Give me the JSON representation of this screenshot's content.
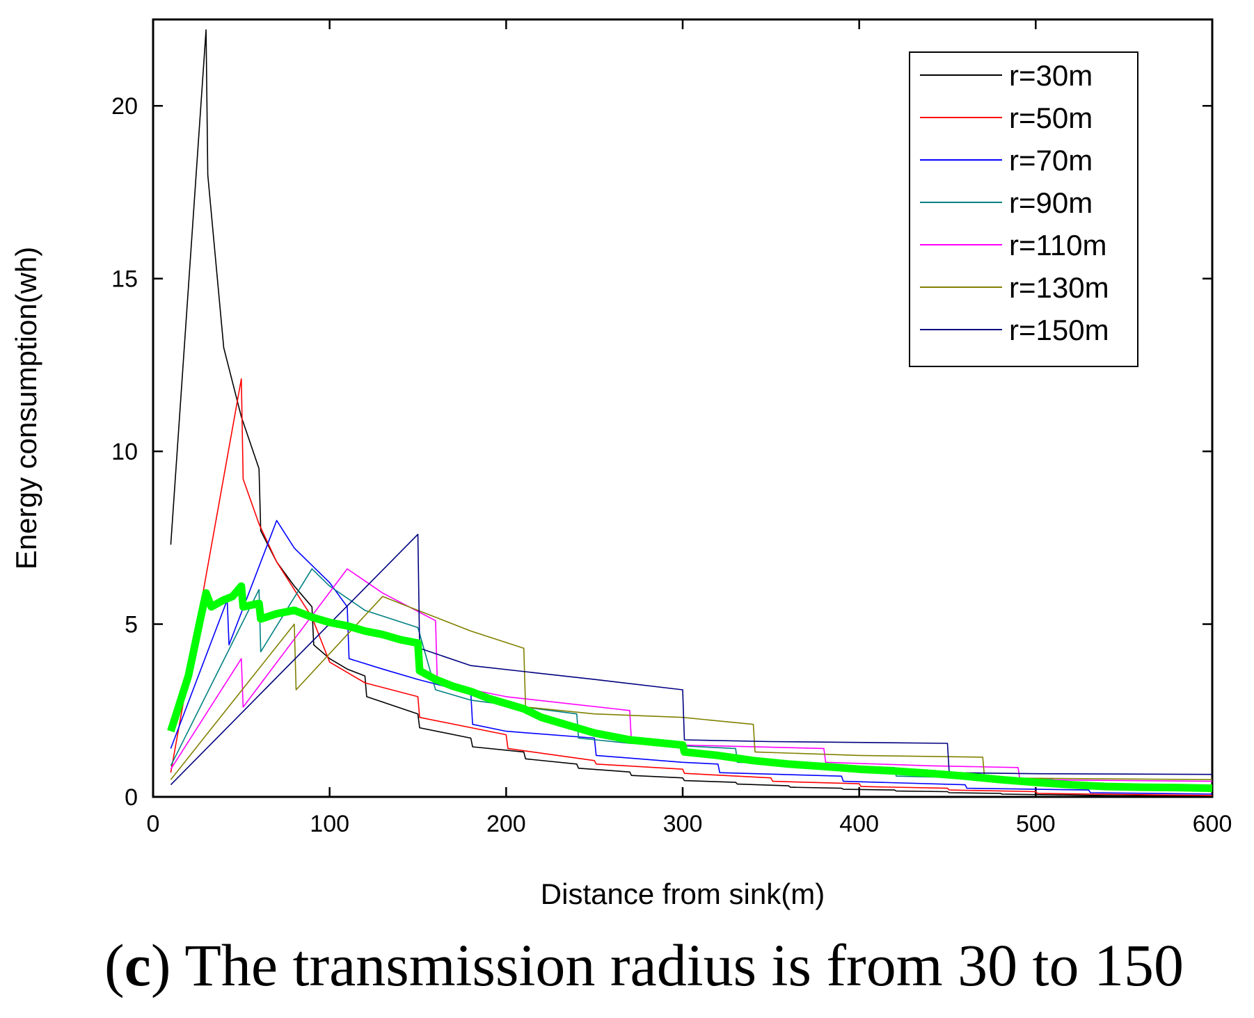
{
  "caption": {
    "open_paren": "(",
    "tag": "c",
    "rest": ") The transmission radius is from 30 to 150"
  },
  "chart_data": {
    "type": "line",
    "title": "",
    "xlabel": "Distance from sink(m)",
    "ylabel": "Energy consumption(wh)",
    "xlim": [
      0,
      600
    ],
    "ylim": [
      0,
      22.5
    ],
    "xticks": [
      0,
      100,
      200,
      300,
      400,
      500,
      600
    ],
    "yticks": [
      0,
      5,
      10,
      15,
      20
    ],
    "grid": false,
    "legend_position": "top-right",
    "series": [
      {
        "name": "r=30m",
        "color": "#000000",
        "width": 1.6,
        "points": [
          [
            10,
            7.3
          ],
          [
            30,
            22.2
          ],
          [
            31,
            18
          ],
          [
            40,
            13
          ],
          [
            50,
            11
          ],
          [
            60,
            9.5
          ],
          [
            61,
            7.7
          ],
          [
            70,
            6.8
          ],
          [
            80,
            6.1
          ],
          [
            90,
            5.5
          ],
          [
            91,
            4.4
          ],
          [
            100,
            4
          ],
          [
            110,
            3.7
          ],
          [
            120,
            3.5
          ],
          [
            121,
            2.9
          ],
          [
            150,
            2.4
          ],
          [
            151,
            2
          ],
          [
            180,
            1.7
          ],
          [
            181,
            1.45
          ],
          [
            210,
            1.3
          ],
          [
            211,
            1.1
          ],
          [
            240,
            0.95
          ],
          [
            241,
            0.83
          ],
          [
            270,
            0.72
          ],
          [
            271,
            0.62
          ],
          [
            300,
            0.55
          ],
          [
            301,
            0.47
          ],
          [
            330,
            0.42
          ],
          [
            331,
            0.37
          ],
          [
            360,
            0.32
          ],
          [
            361,
            0.28
          ],
          [
            390,
            0.25
          ],
          [
            391,
            0.22
          ],
          [
            420,
            0.2
          ],
          [
            421,
            0.17
          ],
          [
            450,
            0.15
          ],
          [
            451,
            0.12
          ],
          [
            480,
            0.1
          ],
          [
            481,
            0.08
          ],
          [
            510,
            0.06
          ],
          [
            540,
            0.04
          ],
          [
            600,
            0.02
          ]
        ]
      },
      {
        "name": "r=50m",
        "color": "#ff0000",
        "width": 1.6,
        "points": [
          [
            10,
            0.7
          ],
          [
            50,
            12.1
          ],
          [
            51,
            9.2
          ],
          [
            60,
            7.9
          ],
          [
            70,
            6.8
          ],
          [
            80,
            6
          ],
          [
            90,
            5.2
          ],
          [
            100,
            3.9
          ],
          [
            120,
            3.3
          ],
          [
            150,
            2.9
          ],
          [
            151,
            2.3
          ],
          [
            200,
            1.8
          ],
          [
            201,
            1.4
          ],
          [
            250,
            1.05
          ],
          [
            251,
            0.95
          ],
          [
            300,
            0.8
          ],
          [
            301,
            0.68
          ],
          [
            350,
            0.55
          ],
          [
            351,
            0.45
          ],
          [
            400,
            0.38
          ],
          [
            401,
            0.3
          ],
          [
            450,
            0.25
          ],
          [
            451,
            0.2
          ],
          [
            500,
            0.15
          ],
          [
            501,
            0.1
          ],
          [
            550,
            0.07
          ],
          [
            600,
            0.04
          ]
        ]
      },
      {
        "name": "r=70m",
        "color": "#0000ff",
        "width": 1.6,
        "points": [
          [
            10,
            1.4
          ],
          [
            42,
            5.7
          ],
          [
            43,
            4.4
          ],
          [
            70,
            8
          ],
          [
            80,
            7.2
          ],
          [
            100,
            6.2
          ],
          [
            110,
            5.5
          ],
          [
            111,
            4
          ],
          [
            130,
            3.7
          ],
          [
            150,
            3.4
          ],
          [
            180,
            3
          ],
          [
            181,
            2.1
          ],
          [
            200,
            1.9
          ],
          [
            250,
            1.7
          ],
          [
            251,
            1.2
          ],
          [
            300,
            1.0
          ],
          [
            320,
            0.95
          ],
          [
            321,
            0.7
          ],
          [
            390,
            0.6
          ],
          [
            391,
            0.45
          ],
          [
            460,
            0.35
          ],
          [
            461,
            0.25
          ],
          [
            530,
            0.2
          ],
          [
            531,
            0.12
          ],
          [
            600,
            0.08
          ]
        ]
      },
      {
        "name": "r=90m",
        "color": "#008080",
        "width": 1.6,
        "points": [
          [
            10,
            0.9
          ],
          [
            60,
            6.0
          ],
          [
            61,
            4.2
          ],
          [
            90,
            6.6
          ],
          [
            100,
            6.1
          ],
          [
            120,
            5.4
          ],
          [
            150,
            4.9
          ],
          [
            160,
            3.1
          ],
          [
            180,
            2.8
          ],
          [
            240,
            2.4
          ],
          [
            241,
            1.7
          ],
          [
            270,
            1.55
          ],
          [
            330,
            1.4
          ],
          [
            331,
            1.0
          ],
          [
            420,
            0.85
          ],
          [
            421,
            0.6
          ],
          [
            510,
            0.5
          ],
          [
            511,
            0.35
          ],
          [
            600,
            0.3
          ]
        ]
      },
      {
        "name": "r=110m",
        "color": "#ff00ff",
        "width": 1.6,
        "points": [
          [
            10,
            0.8
          ],
          [
            50,
            4.0
          ],
          [
            51,
            2.6
          ],
          [
            110,
            6.6
          ],
          [
            130,
            5.9
          ],
          [
            160,
            5.1
          ],
          [
            161,
            3.3
          ],
          [
            200,
            2.9
          ],
          [
            270,
            2.5
          ],
          [
            271,
            1.6
          ],
          [
            300,
            1.5
          ],
          [
            380,
            1.4
          ],
          [
            381,
            1.0
          ],
          [
            440,
            0.9
          ],
          [
            490,
            0.85
          ],
          [
            491,
            0.5
          ],
          [
            600,
            0.45
          ]
        ]
      },
      {
        "name": "r=130m",
        "color": "#808000",
        "width": 1.6,
        "points": [
          [
            10,
            0.5
          ],
          [
            80,
            5.0
          ],
          [
            81,
            3.1
          ],
          [
            130,
            5.8
          ],
          [
            150,
            5.4
          ],
          [
            180,
            4.8
          ],
          [
            210,
            4.3
          ],
          [
            211,
            2.6
          ],
          [
            250,
            2.4
          ],
          [
            300,
            2.3
          ],
          [
            340,
            2.1
          ],
          [
            341,
            1.3
          ],
          [
            400,
            1.2
          ],
          [
            470,
            1.15
          ],
          [
            471,
            0.55
          ],
          [
            600,
            0.5
          ]
        ]
      },
      {
        "name": "r=150m",
        "color": "#000080",
        "width": 1.6,
        "points": [
          [
            10,
            0.35
          ],
          [
            150,
            7.6
          ],
          [
            151,
            4.3
          ],
          [
            180,
            3.8
          ],
          [
            250,
            3.4
          ],
          [
            300,
            3.1
          ],
          [
            301,
            1.65
          ],
          [
            350,
            1.6
          ],
          [
            450,
            1.55
          ],
          [
            451,
            0.7
          ],
          [
            500,
            0.67
          ],
          [
            600,
            0.65
          ]
        ]
      },
      {
        "name": "",
        "color": "#00ff00",
        "width": 11,
        "marker": "square",
        "points": [
          [
            10,
            1.9
          ],
          [
            20,
            3.5
          ],
          [
            27,
            5.2
          ],
          [
            30,
            5.9
          ],
          [
            33,
            5.5
          ],
          [
            40,
            5.7
          ],
          [
            45,
            5.8
          ],
          [
            50,
            6.1
          ],
          [
            51,
            5.5
          ],
          [
            60,
            5.6
          ],
          [
            61,
            5.15
          ],
          [
            70,
            5.3
          ],
          [
            80,
            5.4
          ],
          [
            90,
            5.2
          ],
          [
            100,
            5.05
          ],
          [
            110,
            4.95
          ],
          [
            120,
            4.8
          ],
          [
            130,
            4.7
          ],
          [
            140,
            4.55
          ],
          [
            150,
            4.45
          ],
          [
            151,
            3.65
          ],
          [
            160,
            3.4
          ],
          [
            170,
            3.2
          ],
          [
            180,
            3.05
          ],
          [
            190,
            2.85
          ],
          [
            200,
            2.7
          ],
          [
            210,
            2.55
          ],
          [
            220,
            2.3
          ],
          [
            230,
            2.15
          ],
          [
            240,
            2.0
          ],
          [
            250,
            1.85
          ],
          [
            260,
            1.75
          ],
          [
            270,
            1.65
          ],
          [
            280,
            1.6
          ],
          [
            290,
            1.55
          ],
          [
            300,
            1.5
          ],
          [
            301,
            1.3
          ],
          [
            320,
            1.2
          ],
          [
            340,
            1.05
          ],
          [
            360,
            0.95
          ],
          [
            380,
            0.88
          ],
          [
            400,
            0.8
          ],
          [
            420,
            0.75
          ],
          [
            440,
            0.68
          ],
          [
            460,
            0.6
          ],
          [
            480,
            0.5
          ],
          [
            500,
            0.42
          ],
          [
            520,
            0.35
          ],
          [
            540,
            0.3
          ],
          [
            560,
            0.28
          ],
          [
            580,
            0.27
          ],
          [
            600,
            0.25
          ]
        ]
      }
    ]
  }
}
